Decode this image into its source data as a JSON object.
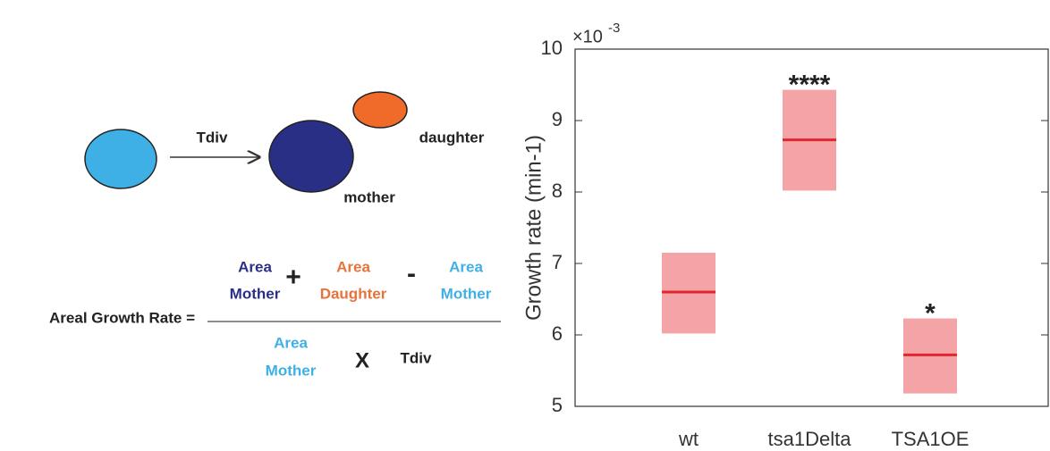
{
  "diagram": {
    "arrow_label": "Tdiv",
    "daughter_label": "daughter",
    "mother_label": "mother",
    "formula": {
      "lhs": "Areal Growth Rate =",
      "numerator": [
        [
          "Area",
          "Mother"
        ],
        "+",
        [
          "Area",
          "Daughter"
        ],
        "-",
        [
          "Area",
          "Mother"
        ]
      ],
      "denominator": [
        [
          "Area",
          "Mother"
        ],
        "X",
        "Tdiv"
      ]
    }
  },
  "chart_data": {
    "type": "box",
    "ylabel": "Growth rate (min-1)",
    "y_multiplier": "×10",
    "y_exponent": "-3",
    "categories": [
      "wt",
      "tsa1Delta",
      "TSA1OE"
    ],
    "lows": [
      6.02,
      8.02,
      5.18
    ],
    "highs": [
      7.15,
      9.43,
      6.23
    ],
    "medians": [
      6.6,
      8.73,
      5.72
    ],
    "annotations": [
      null,
      "****",
      "*"
    ],
    "box_color": "#f4a3a6",
    "median_color": "#e0262f",
    "ylim": [
      5,
      10
    ],
    "yticks": [
      5,
      6,
      7,
      8,
      9,
      10
    ]
  }
}
